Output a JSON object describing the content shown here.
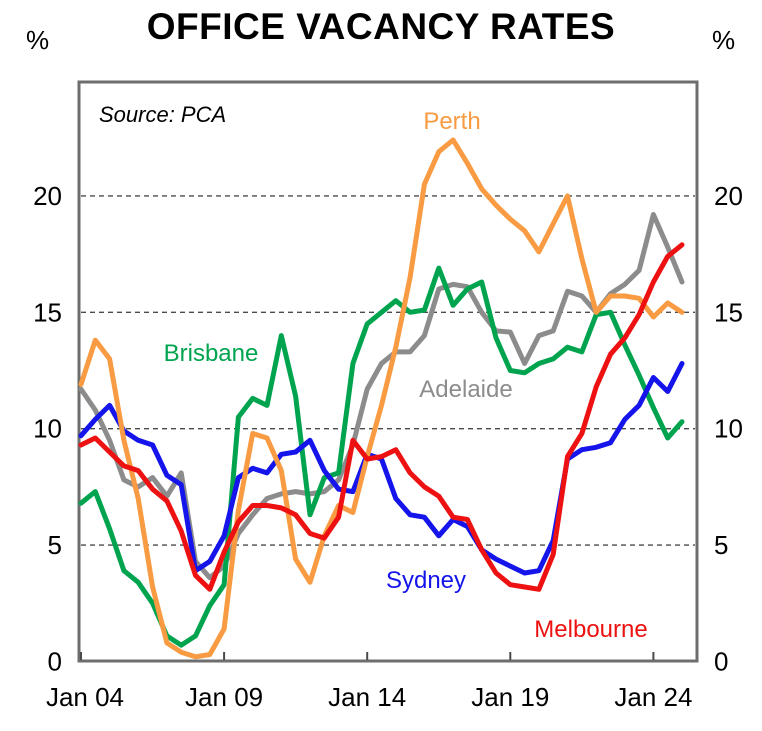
{
  "page": {
    "title": "OFFICE VACANCY RATES",
    "unit_left": "%",
    "unit_right": "%"
  },
  "chart_data": {
    "type": "line",
    "title": "OFFICE VACANCY RATES",
    "source_note": "Source: PCA",
    "unit": "%",
    "frequency": "semiannual",
    "x_axis_tick_labels": [
      "Jan 04",
      "Jan 09",
      "Jan 14",
      "Jan 19",
      "Jan 24"
    ],
    "y_ticks": [
      0,
      5,
      10,
      15,
      20
    ],
    "y_tick_sides": "both",
    "ylim": [
      0,
      24.8
    ],
    "grid": "horizontal dashed lines at 5, 10, 15, 20",
    "legend_style": "inline colored labels near lines",
    "periods": [
      "Jan 04",
      "Jul 04",
      "Jan 05",
      "Jul 05",
      "Jan 06",
      "Jul 06",
      "Jan 07",
      "Jul 07",
      "Jan 08",
      "Jul 08",
      "Jan 09",
      "Jul 09",
      "Jan 10",
      "Jul 10",
      "Jan 11",
      "Jul 11",
      "Jan 12",
      "Jul 12",
      "Jan 13",
      "Jul 13",
      "Jan 14",
      "Jul 14",
      "Jan 15",
      "Jul 15",
      "Jan 16",
      "Jul 16",
      "Jan 17",
      "Jul 17",
      "Jan 18",
      "Jul 18",
      "Jan 19",
      "Jul 19",
      "Jan 20",
      "Jul 20",
      "Jan 21",
      "Jul 21",
      "Jan 22",
      "Jul 22",
      "Jan 23",
      "Jul 23",
      "Jan 24",
      "Jul 24",
      "Jan 25"
    ],
    "series": [
      {
        "name": "Adelaide",
        "color": "#8C8C8C",
        "values": [
          11.7,
          10.8,
          9.5,
          7.8,
          7.5,
          7.9,
          7.1,
          8.1,
          4.3,
          3.6,
          4.1,
          5.5,
          6.3,
          7.0,
          7.2,
          7.3,
          7.2,
          7.3,
          7.8,
          9.3,
          11.7,
          12.8,
          13.3,
          13.3,
          14.0,
          16.0,
          16.2,
          16.1,
          15.0,
          14.2,
          14.15,
          12.8,
          14.0,
          14.2,
          15.9,
          15.7,
          15.0,
          15.8,
          16.2,
          16.8,
          19.2,
          17.8,
          16.3
        ]
      },
      {
        "name": "Brisbane",
        "color": "#00A44F",
        "values": [
          6.8,
          7.3,
          5.7,
          3.9,
          3.4,
          2.5,
          1.1,
          0.7,
          1.1,
          2.4,
          3.3,
          10.5,
          11.3,
          11.0,
          14.0,
          11.4,
          6.3,
          7.9,
          8.1,
          12.8,
          14.5,
          15.0,
          15.5,
          15.0,
          15.1,
          16.9,
          15.3,
          16.0,
          16.3,
          13.9,
          12.5,
          12.4,
          12.8,
          13.0,
          13.5,
          13.3,
          14.9,
          15.0,
          13.6,
          12.3,
          10.9,
          9.6,
          10.3
        ]
      },
      {
        "name": "Sydney",
        "color": "#1414EB",
        "values": [
          9.7,
          10.4,
          11.0,
          9.9,
          9.5,
          9.3,
          8.0,
          7.6,
          3.9,
          4.3,
          5.4,
          7.9,
          8.3,
          8.1,
          8.9,
          9.0,
          9.5,
          8.2,
          7.4,
          7.3,
          8.9,
          8.7,
          7.0,
          6.3,
          6.2,
          5.4,
          6.1,
          5.8,
          4.8,
          4.4,
          4.1,
          3.8,
          3.9,
          5.2,
          8.7,
          9.1,
          9.2,
          9.4,
          10.4,
          11.0,
          12.2,
          11.6,
          12.8
        ]
      },
      {
        "name": "Perth",
        "color": "#F89B42",
        "values": [
          11.9,
          13.8,
          13.0,
          9.5,
          7.0,
          3.2,
          0.8,
          0.4,
          0.2,
          0.3,
          1.4,
          6.5,
          9.8,
          9.6,
          8.2,
          4.4,
          3.4,
          5.4,
          6.7,
          6.4,
          8.8,
          11.0,
          13.5,
          16.5,
          20.5,
          21.9,
          22.4,
          21.4,
          20.3,
          19.6,
          19.0,
          18.5,
          17.6,
          18.8,
          20.0,
          17.3,
          15.0,
          15.7,
          15.7,
          15.6,
          14.8,
          15.4,
          15.0
        ]
      },
      {
        "name": "Melbourne",
        "color": "#ED1111",
        "values": [
          9.3,
          9.6,
          9.0,
          8.4,
          8.2,
          7.4,
          6.9,
          5.6,
          3.7,
          3.1,
          4.7,
          6.0,
          6.7,
          6.7,
          6.6,
          6.3,
          5.5,
          5.3,
          6.2,
          9.5,
          8.7,
          8.8,
          9.1,
          8.1,
          7.5,
          7.1,
          6.2,
          6.1,
          4.8,
          3.8,
          3.3,
          3.2,
          3.1,
          4.6,
          8.8,
          9.8,
          11.8,
          13.2,
          13.9,
          14.9,
          16.3,
          17.4,
          17.9
        ]
      }
    ]
  }
}
